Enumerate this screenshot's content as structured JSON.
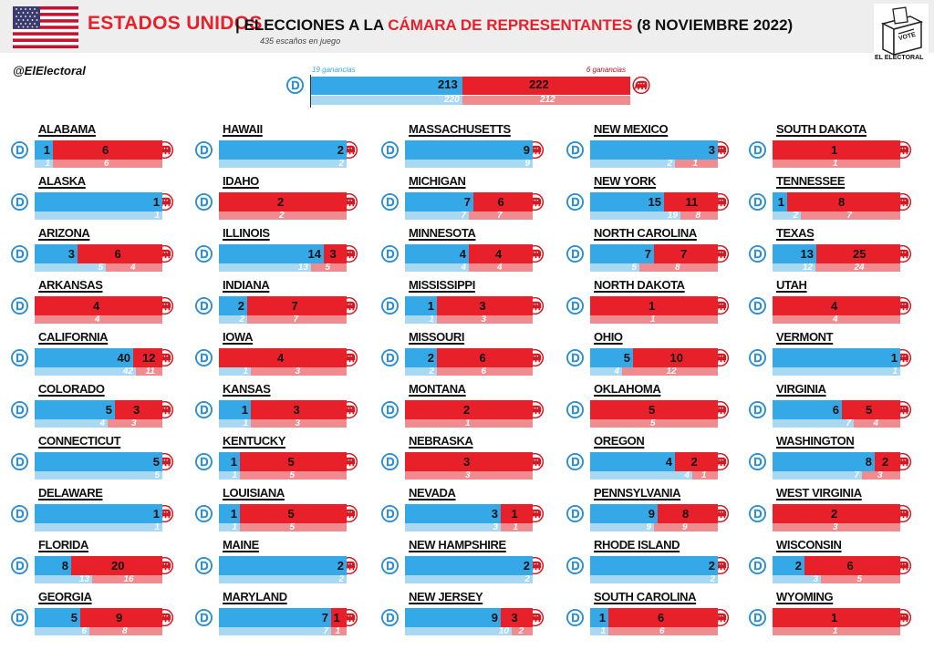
{
  "header": {
    "country": "ESTADOS UNIDOS",
    "separator": "|",
    "title_pre": "ELECCIONES A LA ",
    "title_highlight": "CÁMARA DE REPRESENTANTES",
    "title_post": " (8 NOVIEMBRE 2022)",
    "subtitle": "435 escaños en juego",
    "handle": "@ElElectoral",
    "logo_vote": "VOTE",
    "logo_brand": "EL ELECTORAL"
  },
  "colors": {
    "democrat": "#35a8e8",
    "republican": "#e8202a",
    "democrat_previous": "#a9d8f2",
    "republican_previous": "#f08c8f"
  },
  "icons": {
    "democrat": "democrat-d-icon",
    "republican": "republican-elephant-icon"
  },
  "chart_data": {
    "type": "bar",
    "national": {
      "dem_seats": 213,
      "rep_seats": 222,
      "dem_prev": 220,
      "rep_prev": 212,
      "dem_gains": "19 ganancias",
      "rep_gains": "6 ganancias"
    },
    "states": [
      {
        "name": "ALABAMA",
        "dem": 1,
        "rep": 6,
        "pdem": 1,
        "prep": 6
      },
      {
        "name": "ALASKA",
        "dem": 1,
        "rep": 0,
        "pdem": 1,
        "prep": 0
      },
      {
        "name": "ARIZONA",
        "dem": 3,
        "rep": 6,
        "pdem": 5,
        "prep": 4
      },
      {
        "name": "ARKANSAS",
        "dem": 0,
        "rep": 4,
        "pdem": 0,
        "prep": 4
      },
      {
        "name": "CALIFORNIA",
        "dem": 40,
        "rep": 12,
        "pdem": 42,
        "prep": 11
      },
      {
        "name": "COLORADO",
        "dem": 5,
        "rep": 3,
        "pdem": 4,
        "prep": 3
      },
      {
        "name": "CONNECTICUT",
        "dem": 5,
        "rep": 0,
        "pdem": 5,
        "prep": 0
      },
      {
        "name": "DELAWARE",
        "dem": 1,
        "rep": 0,
        "pdem": 1,
        "prep": 0
      },
      {
        "name": "FLORIDA",
        "dem": 8,
        "rep": 20,
        "pdem": 13,
        "prep": 16
      },
      {
        "name": "GEORGIA",
        "dem": 5,
        "rep": 9,
        "pdem": 6,
        "prep": 8
      },
      {
        "name": "HAWAII",
        "dem": 2,
        "rep": 0,
        "pdem": 2,
        "prep": 0
      },
      {
        "name": "IDAHO",
        "dem": 0,
        "rep": 2,
        "pdem": 0,
        "prep": 2
      },
      {
        "name": "ILLINOIS",
        "dem": 14,
        "rep": 3,
        "pdem": 13,
        "prep": 5
      },
      {
        "name": "INDIANA",
        "dem": 2,
        "rep": 7,
        "pdem": 2,
        "prep": 7
      },
      {
        "name": "IOWA",
        "dem": 0,
        "rep": 4,
        "pdem": 1,
        "prep": 3
      },
      {
        "name": "KANSAS",
        "dem": 1,
        "rep": 3,
        "pdem": 1,
        "prep": 3
      },
      {
        "name": "KENTUCKY",
        "dem": 1,
        "rep": 5,
        "pdem": 1,
        "prep": 5
      },
      {
        "name": "LOUISIANA",
        "dem": 1,
        "rep": 5,
        "pdem": 1,
        "prep": 5
      },
      {
        "name": "MAINE",
        "dem": 2,
        "rep": 0,
        "pdem": 2,
        "prep": 0
      },
      {
        "name": "MARYLAND",
        "dem": 7,
        "rep": 1,
        "pdem": 7,
        "prep": 1
      },
      {
        "name": "MASSACHUSETTS",
        "dem": 9,
        "rep": 0,
        "pdem": 9,
        "prep": 0
      },
      {
        "name": "MICHIGAN",
        "dem": 7,
        "rep": 6,
        "pdem": 7,
        "prep": 7
      },
      {
        "name": "MINNESOTA",
        "dem": 4,
        "rep": 4,
        "pdem": 4,
        "prep": 4
      },
      {
        "name": "MISSISSIPPI",
        "dem": 1,
        "rep": 3,
        "pdem": 1,
        "prep": 3
      },
      {
        "name": "MISSOURI",
        "dem": 2,
        "rep": 6,
        "pdem": 2,
        "prep": 6
      },
      {
        "name": "MONTANA",
        "dem": 0,
        "rep": 2,
        "pdem": 0,
        "prep": 1
      },
      {
        "name": "NEBRASKA",
        "dem": 0,
        "rep": 3,
        "pdem": 0,
        "prep": 3
      },
      {
        "name": "NEVADA",
        "dem": 3,
        "rep": 1,
        "pdem": 3,
        "prep": 1
      },
      {
        "name": "NEW HAMPSHIRE",
        "dem": 2,
        "rep": 0,
        "pdem": 2,
        "prep": 0
      },
      {
        "name": "NEW JERSEY",
        "dem": 9,
        "rep": 3,
        "pdem": 10,
        "prep": 2
      },
      {
        "name": "NEW MEXICO",
        "dem": 3,
        "rep": 0,
        "pdem": 2,
        "prep": 1
      },
      {
        "name": "NEW YORK",
        "dem": 15,
        "rep": 11,
        "pdem": 19,
        "prep": 8
      },
      {
        "name": "NORTH CAROLINA",
        "dem": 7,
        "rep": 7,
        "pdem": 5,
        "prep": 8
      },
      {
        "name": "NORTH DAKOTA",
        "dem": 0,
        "rep": 1,
        "pdem": 0,
        "prep": 1
      },
      {
        "name": "OHIO",
        "dem": 5,
        "rep": 10,
        "pdem": 4,
        "prep": 12
      },
      {
        "name": "OKLAHOMA",
        "dem": 0,
        "rep": 5,
        "pdem": 0,
        "prep": 5
      },
      {
        "name": "OREGON",
        "dem": 4,
        "rep": 2,
        "pdem": 4,
        "prep": 1
      },
      {
        "name": "PENNSYLVANIA",
        "dem": 9,
        "rep": 8,
        "pdem": 9,
        "prep": 9
      },
      {
        "name": "RHODE ISLAND",
        "dem": 2,
        "rep": 0,
        "pdem": 2,
        "prep": 0
      },
      {
        "name": "SOUTH CAROLINA",
        "dem": 1,
        "rep": 6,
        "pdem": 1,
        "prep": 6
      },
      {
        "name": "SOUTH DAKOTA",
        "dem": 0,
        "rep": 1,
        "pdem": 0,
        "prep": 1
      },
      {
        "name": "TENNESSEE",
        "dem": 1,
        "rep": 8,
        "pdem": 2,
        "prep": 7
      },
      {
        "name": "TEXAS",
        "dem": 13,
        "rep": 25,
        "pdem": 12,
        "prep": 24
      },
      {
        "name": "UTAH",
        "dem": 0,
        "rep": 4,
        "pdem": 0,
        "prep": 4
      },
      {
        "name": "VERMONT",
        "dem": 1,
        "rep": 0,
        "pdem": 1,
        "prep": 0
      },
      {
        "name": "VIRGINIA",
        "dem": 6,
        "rep": 5,
        "pdem": 7,
        "prep": 4
      },
      {
        "name": "WASHINGTON",
        "dem": 8,
        "rep": 2,
        "pdem": 7,
        "prep": 3
      },
      {
        "name": "WEST VIRGINIA",
        "dem": 0,
        "rep": 2,
        "pdem": 0,
        "prep": 3
      },
      {
        "name": "WISCONSIN",
        "dem": 2,
        "rep": 6,
        "pdem": 3,
        "prep": 5
      },
      {
        "name": "WYOMING",
        "dem": 0,
        "rep": 1,
        "pdem": 0,
        "prep": 1
      }
    ]
  }
}
